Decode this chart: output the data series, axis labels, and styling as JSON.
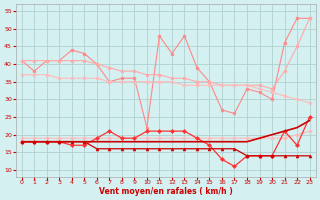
{
  "x": [
    0,
    1,
    2,
    3,
    4,
    5,
    6,
    7,
    8,
    9,
    10,
    11,
    12,
    13,
    14,
    15,
    16,
    17,
    18,
    19,
    20,
    21,
    22,
    23
  ],
  "series": [
    {
      "name": "rafales_jagged",
      "y": [
        41,
        38,
        41,
        41,
        44,
        43,
        40,
        35,
        36,
        36,
        22,
        48,
        43,
        48,
        39,
        35,
        27,
        26,
        33,
        32,
        30,
        46,
        53,
        53
      ],
      "color": "#ff8888",
      "marker": "o",
      "lw": 0.8,
      "ms": 2.0
    },
    {
      "name": "rafales_upper_band",
      "y": [
        41,
        41,
        41,
        41,
        41,
        41,
        40,
        39,
        38,
        38,
        37,
        37,
        36,
        36,
        35,
        35,
        34,
        34,
        34,
        34,
        33,
        38,
        45,
        53
      ],
      "color": "#ffaaaa",
      "marker": "o",
      "lw": 0.8,
      "ms": 2.0
    },
    {
      "name": "moyen_upper",
      "y": [
        37,
        37,
        37,
        36,
        36,
        36,
        36,
        35,
        35,
        35,
        35,
        35,
        35,
        34,
        34,
        34,
        34,
        34,
        34,
        33,
        32,
        31,
        30,
        29
      ],
      "color": "#ffbbbb",
      "marker": "o",
      "lw": 0.8,
      "ms": 2.0
    },
    {
      "name": "moyen_lower_band",
      "y": [
        19,
        19,
        19,
        19,
        19,
        19,
        19,
        19,
        19,
        19,
        19,
        19,
        19,
        19,
        19,
        19,
        19,
        19,
        19,
        19,
        19,
        19,
        20,
        21
      ],
      "color": "#ffbbbb",
      "marker": "o",
      "lw": 0.8,
      "ms": 2.0
    },
    {
      "name": "moyen_actual",
      "y": [
        18,
        18,
        18,
        18,
        17,
        17,
        19,
        21,
        19,
        19,
        21,
        21,
        21,
        21,
        19,
        17,
        13,
        11,
        14,
        14,
        14,
        21,
        17,
        25
      ],
      "color": "#ff3333",
      "marker": "D",
      "lw": 0.9,
      "ms": 2.0
    },
    {
      "name": "moyen_trend_up",
      "y": [
        18,
        18,
        18,
        18,
        18,
        18,
        18,
        18,
        18,
        18,
        18,
        18,
        18,
        18,
        18,
        18,
        18,
        18,
        18,
        19,
        20,
        21,
        22,
        24
      ],
      "color": "#cc0000",
      "marker": null,
      "lw": 1.2,
      "ms": 0
    },
    {
      "name": "min_flat",
      "y": [
        18,
        18,
        18,
        18,
        18,
        18,
        16,
        16,
        16,
        16,
        16,
        16,
        16,
        16,
        16,
        16,
        16,
        16,
        14,
        14,
        14,
        14,
        14,
        14
      ],
      "color": "#cc0000",
      "marker": "^",
      "lw": 0.9,
      "ms": 2.0
    }
  ],
  "xlabel": "Vent moyen/en rafales ( km/h )",
  "ylim": [
    8,
    57
  ],
  "yticks": [
    10,
    15,
    20,
    25,
    30,
    35,
    40,
    45,
    50,
    55
  ],
  "xlim": [
    -0.5,
    23.5
  ],
  "xticks": [
    0,
    1,
    2,
    3,
    4,
    5,
    6,
    7,
    8,
    9,
    10,
    11,
    12,
    13,
    14,
    15,
    16,
    17,
    18,
    19,
    20,
    21,
    22,
    23
  ],
  "bg_color": "#d4f0f0",
  "grid_color": "#aacccc",
  "tick_color": "#cc0000",
  "xlabel_color": "#cc0000"
}
